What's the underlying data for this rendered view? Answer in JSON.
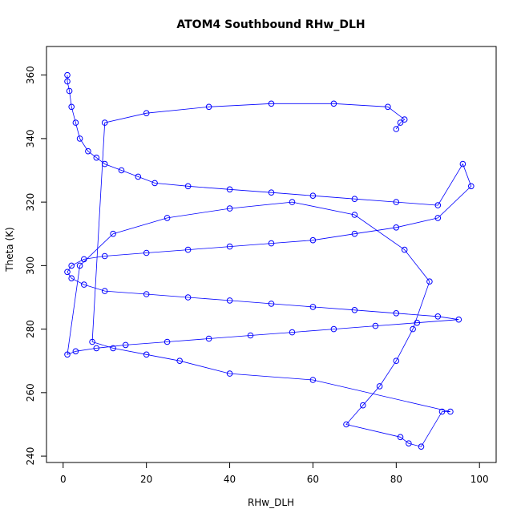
{
  "chart_data": {
    "type": "scatter",
    "title": "ATOM4 Southbound RHw_DLH",
    "xlabel": "RHw_DLH",
    "ylabel": "Theta (K)",
    "xlim": [
      -4,
      104
    ],
    "ylim": [
      238,
      369
    ],
    "x_ticks": [
      0,
      20,
      40,
      60,
      80,
      100
    ],
    "y_ticks": [
      240,
      260,
      280,
      300,
      320,
      340,
      360
    ],
    "x_tick_labels": [
      "0",
      "20",
      "40",
      "60",
      "80",
      "100"
    ],
    "y_tick_labels": [
      "240",
      "260",
      "280",
      "300",
      "320",
      "340",
      "360"
    ],
    "marker": "open-circle",
    "connected": true,
    "grid": false,
    "series_color": "#0000ff",
    "series": [
      {
        "x": [
          1,
          1,
          1.5,
          2,
          3,
          4,
          6,
          8,
          10,
          14,
          18,
          22,
          30,
          40,
          50,
          60,
          70,
          80,
          90,
          96,
          98,
          90,
          80,
          70,
          60,
          50,
          40,
          30,
          20,
          10,
          5,
          2,
          1,
          2,
          5,
          10,
          20,
          30,
          40,
          50,
          60,
          70,
          80,
          90,
          95,
          85,
          75,
          65,
          55,
          45,
          35,
          25,
          15,
          8,
          3,
          1,
          4,
          12,
          25,
          40,
          55,
          70,
          82,
          88,
          84,
          80,
          76,
          72,
          68,
          81,
          83,
          86,
          91,
          93,
          60,
          40,
          28,
          20,
          12,
          7,
          10,
          20,
          35,
          50,
          65,
          78,
          82,
          81,
          80
        ],
        "y": [
          360,
          358,
          355,
          350,
          345,
          340,
          336,
          334,
          332,
          330,
          328,
          326,
          325,
          324,
          323,
          322,
          321,
          320,
          319,
          332,
          325,
          315,
          312,
          310,
          308,
          307,
          306,
          305,
          304,
          303,
          302,
          300,
          298,
          296,
          294,
          292,
          291,
          290,
          289,
          288,
          287,
          286,
          285,
          284,
          283,
          282,
          281,
          280,
          279,
          278,
          277,
          276,
          275,
          274,
          273,
          272,
          300,
          310,
          315,
          318,
          320,
          316,
          305,
          295,
          280,
          270,
          262,
          256,
          250,
          246,
          244,
          243,
          254,
          254,
          264,
          266,
          270,
          272,
          274,
          276,
          345,
          348,
          350,
          351,
          351,
          350,
          346,
          345,
          343
        ]
      }
    ]
  }
}
